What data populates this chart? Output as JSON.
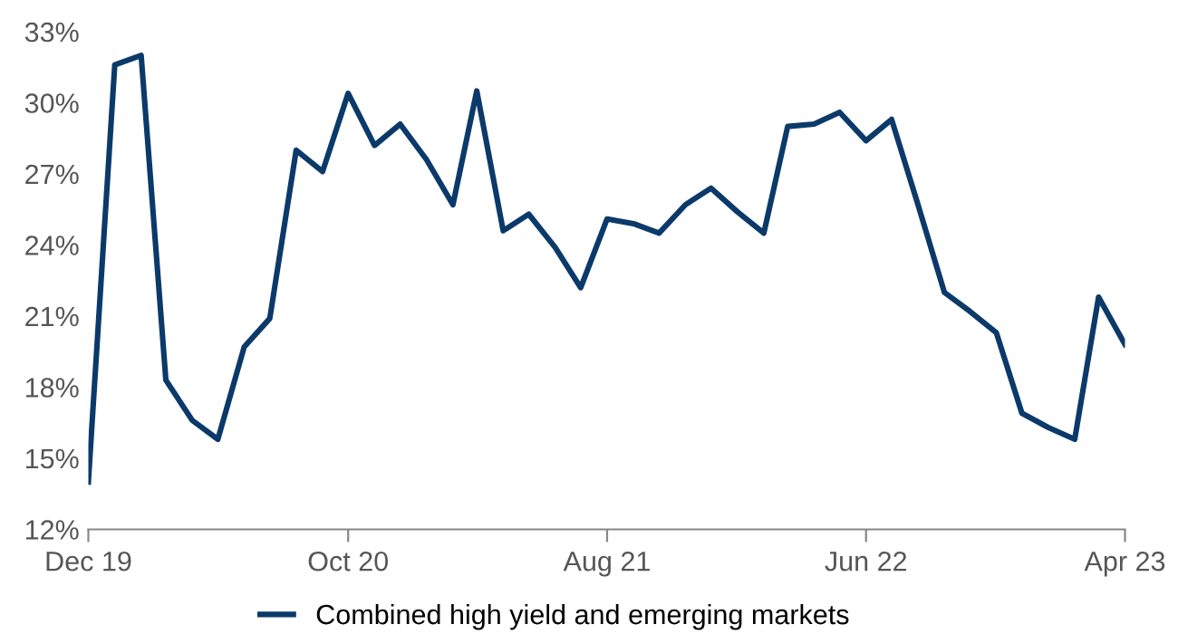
{
  "chart_data": {
    "type": "line",
    "x": [
      "2019-12",
      "2020-01",
      "2020-02",
      "2020-03",
      "2020-04",
      "2020-05",
      "2020-06",
      "2020-07",
      "2020-08",
      "2020-09",
      "2020-10",
      "2020-11",
      "2020-12",
      "2021-01",
      "2021-02",
      "2021-03",
      "2021-04",
      "2021-05",
      "2021-06",
      "2021-07",
      "2021-08",
      "2021-09",
      "2021-10",
      "2021-11",
      "2021-12",
      "2022-01",
      "2022-02",
      "2022-03",
      "2022-04",
      "2022-05",
      "2022-06",
      "2022-07",
      "2022-08",
      "2022-09",
      "2022-10",
      "2022-11",
      "2022-12",
      "2023-01",
      "2023-02",
      "2023-03",
      "2023-04"
    ],
    "series": [
      {
        "name": "Combined high yield and emerging markets",
        "color": "#0b3a6a",
        "values": [
          14.0,
          31.6,
          32.0,
          18.3,
          16.6,
          15.8,
          19.7,
          20.9,
          28.0,
          27.1,
          30.4,
          28.2,
          29.1,
          27.6,
          25.7,
          30.5,
          24.6,
          25.3,
          23.9,
          22.2,
          25.1,
          24.9,
          24.5,
          25.7,
          26.4,
          25.4,
          24.5,
          29.0,
          29.1,
          29.6,
          28.4,
          29.3,
          25.7,
          22.0,
          21.2,
          20.3,
          16.9,
          16.3,
          15.8,
          21.8,
          19.8
        ]
      }
    ],
    "xlim": [
      "2019-12",
      "2023-04"
    ],
    "xticks": [
      {
        "value": "2019-12",
        "label": "Dec 19"
      },
      {
        "value": "2020-10",
        "label": "Oct 20"
      },
      {
        "value": "2021-08",
        "label": "Aug 21"
      },
      {
        "value": "2022-06",
        "label": "Jun 22"
      },
      {
        "value": "2023-04",
        "label": "Apr 23"
      }
    ],
    "ylim": [
      12,
      33
    ],
    "yticks": [
      {
        "value": 12,
        "label": "12%"
      },
      {
        "value": 15,
        "label": "15%"
      },
      {
        "value": 18,
        "label": "18%"
      },
      {
        "value": 21,
        "label": "21%"
      },
      {
        "value": 24,
        "label": "24%"
      },
      {
        "value": 27,
        "label": "27%"
      },
      {
        "value": 30,
        "label": "30%"
      },
      {
        "value": 33,
        "label": "33%"
      }
    ],
    "legend": "bottom",
    "marker": "none",
    "line_style": "solid"
  }
}
